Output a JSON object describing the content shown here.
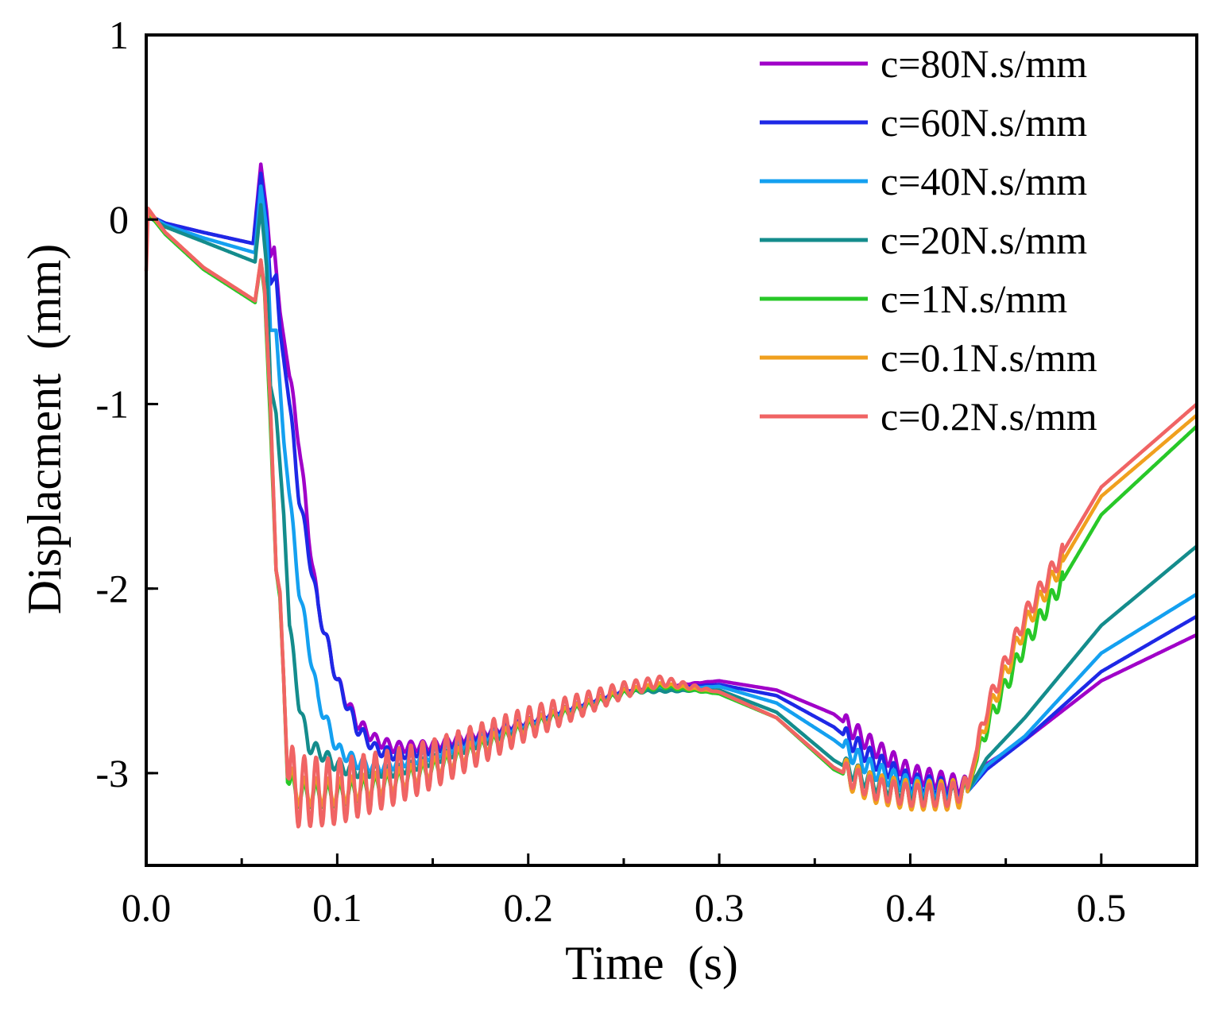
{
  "chart_data": {
    "type": "line",
    "title": "",
    "xlabel": "Time  (s)",
    "ylabel": "Displacment  (mm)",
    "xlim": [
      0,
      0.55
    ],
    "ylim": [
      -3.5,
      1
    ],
    "x_ticks": [
      0.0,
      0.1,
      0.2,
      0.3,
      0.4,
      0.5
    ],
    "x_tick_labels": [
      "0.0",
      "0.1",
      "0.2",
      "0.3",
      "0.4",
      "0.5"
    ],
    "y_ticks": [
      1,
      0,
      -1,
      -2,
      -3
    ],
    "y_tick_labels": [
      "1",
      "0",
      "-1",
      "-2",
      "-3"
    ],
    "grid": false,
    "legend_position": "top-right",
    "series": [
      {
        "name": "c=80N.s/mm",
        "color": "#A000C8",
        "osc1": 0.04,
        "osc2": 0.05,
        "points": [
          [
            0,
            0.02
          ],
          [
            0.01,
            -0.02
          ],
          [
            0.03,
            -0.07
          ],
          [
            0.056,
            -0.13
          ],
          [
            0.06,
            0.3
          ],
          [
            0.063,
            0.05
          ],
          [
            0.065,
            -0.2
          ],
          [
            0.067,
            -0.15
          ],
          [
            0.07,
            -0.5
          ],
          [
            0.075,
            -0.85
          ],
          [
            0.08,
            -1.2
          ],
          [
            0.085,
            -1.7
          ],
          [
            0.09,
            -2.1
          ],
          [
            0.1,
            -2.5
          ],
          [
            0.11,
            -2.72
          ],
          [
            0.12,
            -2.82
          ],
          [
            0.13,
            -2.86
          ],
          [
            0.15,
            -2.85
          ],
          [
            0.2,
            -2.72
          ],
          [
            0.25,
            -2.55
          ],
          [
            0.3,
            -2.5
          ],
          [
            0.33,
            -2.55
          ],
          [
            0.36,
            -2.68
          ],
          [
            0.38,
            -2.85
          ],
          [
            0.4,
            -3.0
          ],
          [
            0.42,
            -3.05
          ],
          [
            0.43,
            -3.07
          ],
          [
            0.44,
            -2.95
          ],
          [
            0.46,
            -2.82
          ],
          [
            0.5,
            -2.5
          ],
          [
            0.55,
            -2.25
          ]
        ]
      },
      {
        "name": "c=60N.s/mm",
        "color": "#1E28E6",
        "osc1": 0.04,
        "osc2": 0.05,
        "points": [
          [
            0,
            0.03
          ],
          [
            0.01,
            -0.02
          ],
          [
            0.03,
            -0.07
          ],
          [
            0.056,
            -0.13
          ],
          [
            0.06,
            0.25
          ],
          [
            0.063,
            0.0
          ],
          [
            0.065,
            -0.35
          ],
          [
            0.068,
            -0.3
          ],
          [
            0.07,
            -0.6
          ],
          [
            0.075,
            -1.0
          ],
          [
            0.08,
            -1.5
          ],
          [
            0.09,
            -2.1
          ],
          [
            0.1,
            -2.5
          ],
          [
            0.11,
            -2.75
          ],
          [
            0.12,
            -2.87
          ],
          [
            0.13,
            -2.9
          ],
          [
            0.15,
            -2.87
          ],
          [
            0.2,
            -2.72
          ],
          [
            0.25,
            -2.55
          ],
          [
            0.3,
            -2.52
          ],
          [
            0.33,
            -2.58
          ],
          [
            0.36,
            -2.75
          ],
          [
            0.38,
            -2.92
          ],
          [
            0.4,
            -3.05
          ],
          [
            0.42,
            -3.08
          ],
          [
            0.43,
            -3.1
          ],
          [
            0.44,
            -2.98
          ],
          [
            0.46,
            -2.82
          ],
          [
            0.5,
            -2.45
          ],
          [
            0.55,
            -2.15
          ]
        ]
      },
      {
        "name": "c=40N.s/mm",
        "color": "#14A0F0",
        "osc1": 0.04,
        "osc2": 0.05,
        "points": [
          [
            0,
            0.03
          ],
          [
            0.01,
            -0.03
          ],
          [
            0.03,
            -0.1
          ],
          [
            0.057,
            -0.18
          ],
          [
            0.06,
            0.18
          ],
          [
            0.063,
            -0.05
          ],
          [
            0.065,
            -0.6
          ],
          [
            0.068,
            -0.6
          ],
          [
            0.072,
            -1.2
          ],
          [
            0.076,
            -1.6
          ],
          [
            0.08,
            -2.0
          ],
          [
            0.09,
            -2.6
          ],
          [
            0.1,
            -2.87
          ],
          [
            0.11,
            -2.94
          ],
          [
            0.12,
            -2.97
          ],
          [
            0.13,
            -2.95
          ],
          [
            0.15,
            -2.9
          ],
          [
            0.2,
            -2.73
          ],
          [
            0.25,
            -2.56
          ],
          [
            0.3,
            -2.53
          ],
          [
            0.33,
            -2.62
          ],
          [
            0.36,
            -2.82
          ],
          [
            0.38,
            -2.98
          ],
          [
            0.4,
            -3.07
          ],
          [
            0.42,
            -3.1
          ],
          [
            0.43,
            -3.1
          ],
          [
            0.44,
            -2.96
          ],
          [
            0.46,
            -2.8
          ],
          [
            0.5,
            -2.35
          ],
          [
            0.55,
            -2.03
          ]
        ]
      },
      {
        "name": "c=20N.s/mm",
        "color": "#148C8C",
        "osc1": 0.04,
        "osc2": 0.05,
        "points": [
          [
            0,
            0.02
          ],
          [
            0.01,
            -0.04
          ],
          [
            0.03,
            -0.12
          ],
          [
            0.057,
            -0.23
          ],
          [
            0.06,
            0.08
          ],
          [
            0.063,
            -0.25
          ],
          [
            0.065,
            -0.9
          ],
          [
            0.068,
            -1.05
          ],
          [
            0.072,
            -1.6
          ],
          [
            0.075,
            -2.2
          ],
          [
            0.08,
            -2.62
          ],
          [
            0.085,
            -2.85
          ],
          [
            0.09,
            -2.88
          ],
          [
            0.1,
            -2.96
          ],
          [
            0.11,
            -2.99
          ],
          [
            0.13,
            -2.99
          ],
          [
            0.15,
            -2.93
          ],
          [
            0.2,
            -2.74
          ],
          [
            0.25,
            -2.56
          ],
          [
            0.3,
            -2.55
          ],
          [
            0.33,
            -2.67
          ],
          [
            0.36,
            -2.93
          ],
          [
            0.38,
            -3.05
          ],
          [
            0.4,
            -3.1
          ],
          [
            0.42,
            -3.12
          ],
          [
            0.43,
            -3.1
          ],
          [
            0.44,
            -2.92
          ],
          [
            0.46,
            -2.7
          ],
          [
            0.5,
            -2.2
          ],
          [
            0.55,
            -1.77
          ]
        ]
      },
      {
        "name": "c=1N.s/mm",
        "color": "#28C828",
        "osc1": 0.07,
        "osc2": 0.07,
        "points": [
          [
            0,
            0.05
          ],
          [
            0.01,
            -0.08
          ],
          [
            0.03,
            -0.27
          ],
          [
            0.057,
            -0.45
          ],
          [
            0.06,
            -0.23
          ],
          [
            0.062,
            -0.4
          ],
          [
            0.065,
            -1.1
          ],
          [
            0.068,
            -1.9
          ],
          [
            0.07,
            -2.05
          ],
          [
            0.072,
            -2.5
          ],
          [
            0.074,
            -3.05
          ],
          [
            0.08,
            -3.12
          ],
          [
            0.1,
            -3.12
          ],
          [
            0.13,
            -3.05
          ],
          [
            0.15,
            -2.98
          ],
          [
            0.2,
            -2.75
          ],
          [
            0.25,
            -2.57
          ],
          [
            0.27,
            -2.53
          ],
          [
            0.3,
            -2.57
          ],
          [
            0.33,
            -2.7
          ],
          [
            0.36,
            -2.98
          ],
          [
            0.38,
            -3.08
          ],
          [
            0.4,
            -3.12
          ],
          [
            0.42,
            -3.12
          ],
          [
            0.43,
            -3.1
          ],
          [
            0.44,
            -2.75
          ],
          [
            0.46,
            -2.3
          ],
          [
            0.5,
            -1.6
          ],
          [
            0.55,
            -1.12
          ]
        ]
      },
      {
        "name": "c=0.1N.s/mm",
        "color": "#F0A01E",
        "osc1": 0.08,
        "osc2": 0.08,
        "points": [
          [
            0,
            0.06
          ],
          [
            0.01,
            -0.07
          ],
          [
            0.03,
            -0.26
          ],
          [
            0.057,
            -0.44
          ],
          [
            0.06,
            -0.22
          ],
          [
            0.062,
            -0.38
          ],
          [
            0.065,
            -1.0
          ],
          [
            0.068,
            -1.9
          ],
          [
            0.07,
            -2.02
          ],
          [
            0.072,
            -2.5
          ],
          [
            0.074,
            -3.02
          ],
          [
            0.08,
            -3.1
          ],
          [
            0.1,
            -3.1
          ],
          [
            0.13,
            -3.04
          ],
          [
            0.15,
            -2.97
          ],
          [
            0.2,
            -2.74
          ],
          [
            0.25,
            -2.56
          ],
          [
            0.27,
            -2.52
          ],
          [
            0.3,
            -2.56
          ],
          [
            0.33,
            -2.7
          ],
          [
            0.36,
            -2.97
          ],
          [
            0.38,
            -3.08
          ],
          [
            0.4,
            -3.12
          ],
          [
            0.42,
            -3.12
          ],
          [
            0.43,
            -3.1
          ],
          [
            0.44,
            -2.7
          ],
          [
            0.46,
            -2.2
          ],
          [
            0.5,
            -1.5
          ],
          [
            0.55,
            -1.06
          ]
        ]
      },
      {
        "name": "c=0.2N.s/mm",
        "color": "#F06464",
        "osc1": 0.2,
        "osc2": 0.06,
        "points": [
          [
            0,
            -0.28
          ],
          [
            0.001,
            0.06
          ],
          [
            0.01,
            -0.07
          ],
          [
            0.03,
            -0.26
          ],
          [
            0.057,
            -0.44
          ],
          [
            0.06,
            -0.22
          ],
          [
            0.062,
            -0.38
          ],
          [
            0.065,
            -1.0
          ],
          [
            0.068,
            -1.9
          ],
          [
            0.07,
            -2.02
          ],
          [
            0.072,
            -2.5
          ],
          [
            0.074,
            -3.02
          ],
          [
            0.08,
            -3.1
          ],
          [
            0.1,
            -3.1
          ],
          [
            0.13,
            -3.02
          ],
          [
            0.15,
            -2.95
          ],
          [
            0.2,
            -2.73
          ],
          [
            0.25,
            -2.55
          ],
          [
            0.27,
            -2.5
          ],
          [
            0.3,
            -2.56
          ],
          [
            0.33,
            -2.7
          ],
          [
            0.36,
            -2.97
          ],
          [
            0.38,
            -3.08
          ],
          [
            0.4,
            -3.12
          ],
          [
            0.42,
            -3.12
          ],
          [
            0.43,
            -3.08
          ],
          [
            0.44,
            -2.65
          ],
          [
            0.46,
            -2.15
          ],
          [
            0.5,
            -1.45
          ],
          [
            0.55,
            -1.0
          ]
        ]
      }
    ]
  }
}
